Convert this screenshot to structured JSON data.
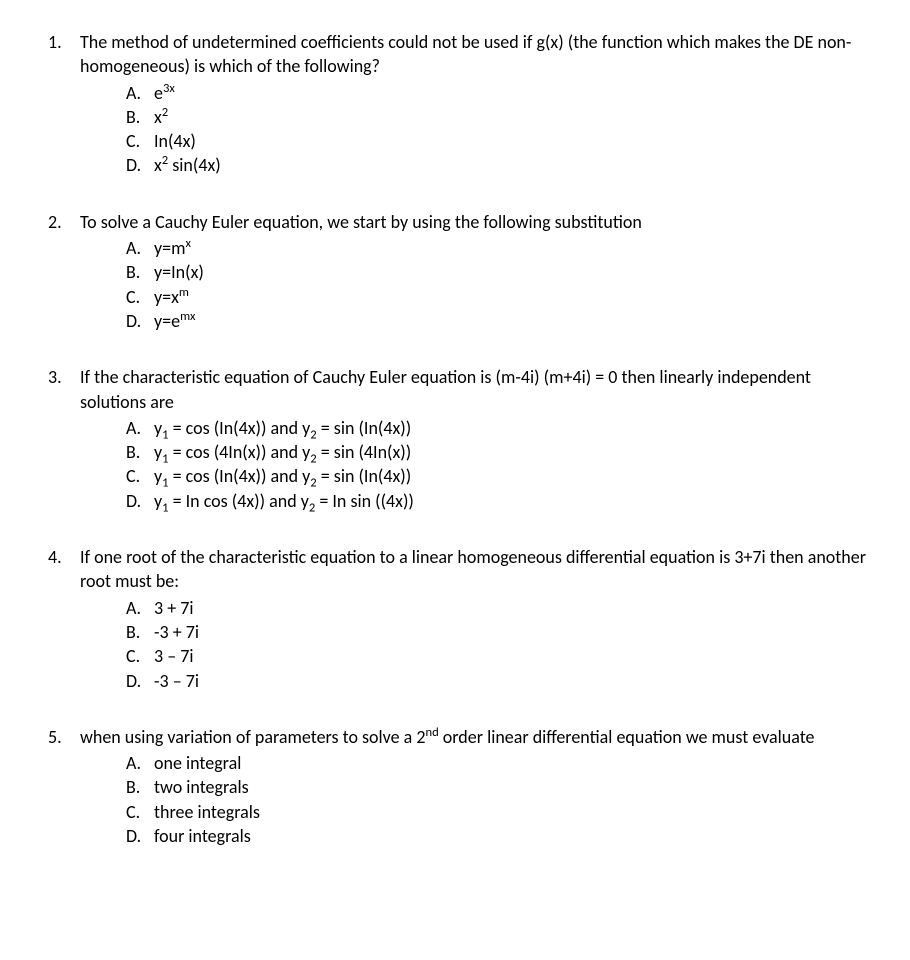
{
  "questions": [
    {
      "number": "1.",
      "text": "The method of undetermined coefficients could not be used if g(x) (the function which makes the DE non-homogeneous) is which of the following?",
      "options": [
        {
          "letter": "A.",
          "html": "e<sup>3x</sup>"
        },
        {
          "letter": "B.",
          "html": "x<sup>2</sup>"
        },
        {
          "letter": "C.",
          "html": "In(4x)"
        },
        {
          "letter": "D.",
          "html": "x<sup>2</sup> sin(4x)"
        }
      ]
    },
    {
      "number": "2.",
      "text": "To solve a Cauchy Euler equation, we start by using the following substitution",
      "options": [
        {
          "letter": "A.",
          "html": "y=m<sup>x</sup>"
        },
        {
          "letter": "B.",
          "html": "y=In(x)"
        },
        {
          "letter": "C.",
          "html": "y=x<sup>m</sup>"
        },
        {
          "letter": "D.",
          "html": "y=e<sup>mx</sup>"
        }
      ]
    },
    {
      "number": "3.",
      "text": "If the characteristic equation of Cauchy Euler equation is (m-4i) (m+4i) = 0 then linearly independent solutions are",
      "options": [
        {
          "letter": "A.",
          "html": "y<sub>1</sub> = cos (In(4x)) and y<sub>2</sub> = sin (In(4x))"
        },
        {
          "letter": "B.",
          "html": "y<sub>1</sub> = cos (4In(x)) and y<sub>2</sub> = sin (4In(x))"
        },
        {
          "letter": "C.",
          "html": "y<sub>1</sub> = cos (In(4x)) and y<sub>2</sub> = sin (In(4x))"
        },
        {
          "letter": "D.",
          "html": "y<sub>1</sub> = In cos (4x)) and y<sub>2</sub> = In sin ((4x))"
        }
      ]
    },
    {
      "number": "4.",
      "text": "If one root of the characteristic equation to a linear homogeneous differential equation is 3+7i then another root must be:",
      "options": [
        {
          "letter": "A.",
          "html": "3 + 7i"
        },
        {
          "letter": "B.",
          "html": "-3 + 7i"
        },
        {
          "letter": "C.",
          "html": "3 – 7i"
        },
        {
          "letter": "D.",
          "html": "-3 – 7i"
        }
      ]
    },
    {
      "number": "5.",
      "text_html": "when using variation of parameters to solve a 2<sup>nd</sup> order linear differential equation we must evaluate",
      "options": [
        {
          "letter": "A.",
          "html": "one integral"
        },
        {
          "letter": "B.",
          "html": "two integrals"
        },
        {
          "letter": "C.",
          "html": "three integrals"
        },
        {
          "letter": "D.",
          "html": "four integrals"
        }
      ]
    }
  ]
}
